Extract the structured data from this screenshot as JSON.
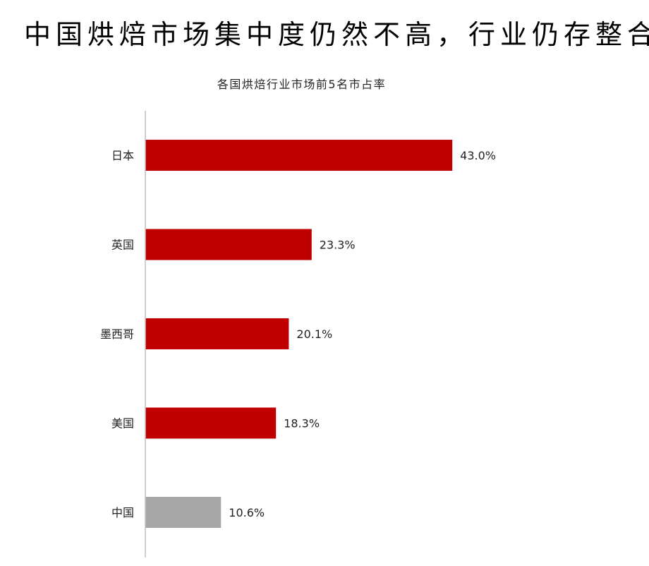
{
  "title": "中国烘焙市场集中度仍然不高，行业仍存整合机会",
  "chart_data": {
    "type": "bar",
    "orientation": "horizontal",
    "title": "各国烘焙行业市场前5名市占率",
    "categories": [
      "日本",
      "英国",
      "墨西哥",
      "美国",
      "中国"
    ],
    "values": [
      43.0,
      23.3,
      20.1,
      18.3,
      10.6
    ],
    "data_labels": [
      "43.0%",
      "23.3%",
      "20.1%",
      "18.3%",
      "10.6%"
    ],
    "colors": [
      "#c00000",
      "#c00000",
      "#c00000",
      "#c00000",
      "#a6a6a6"
    ],
    "xlabel": "",
    "ylabel": "",
    "grid": false,
    "legend": "none"
  }
}
